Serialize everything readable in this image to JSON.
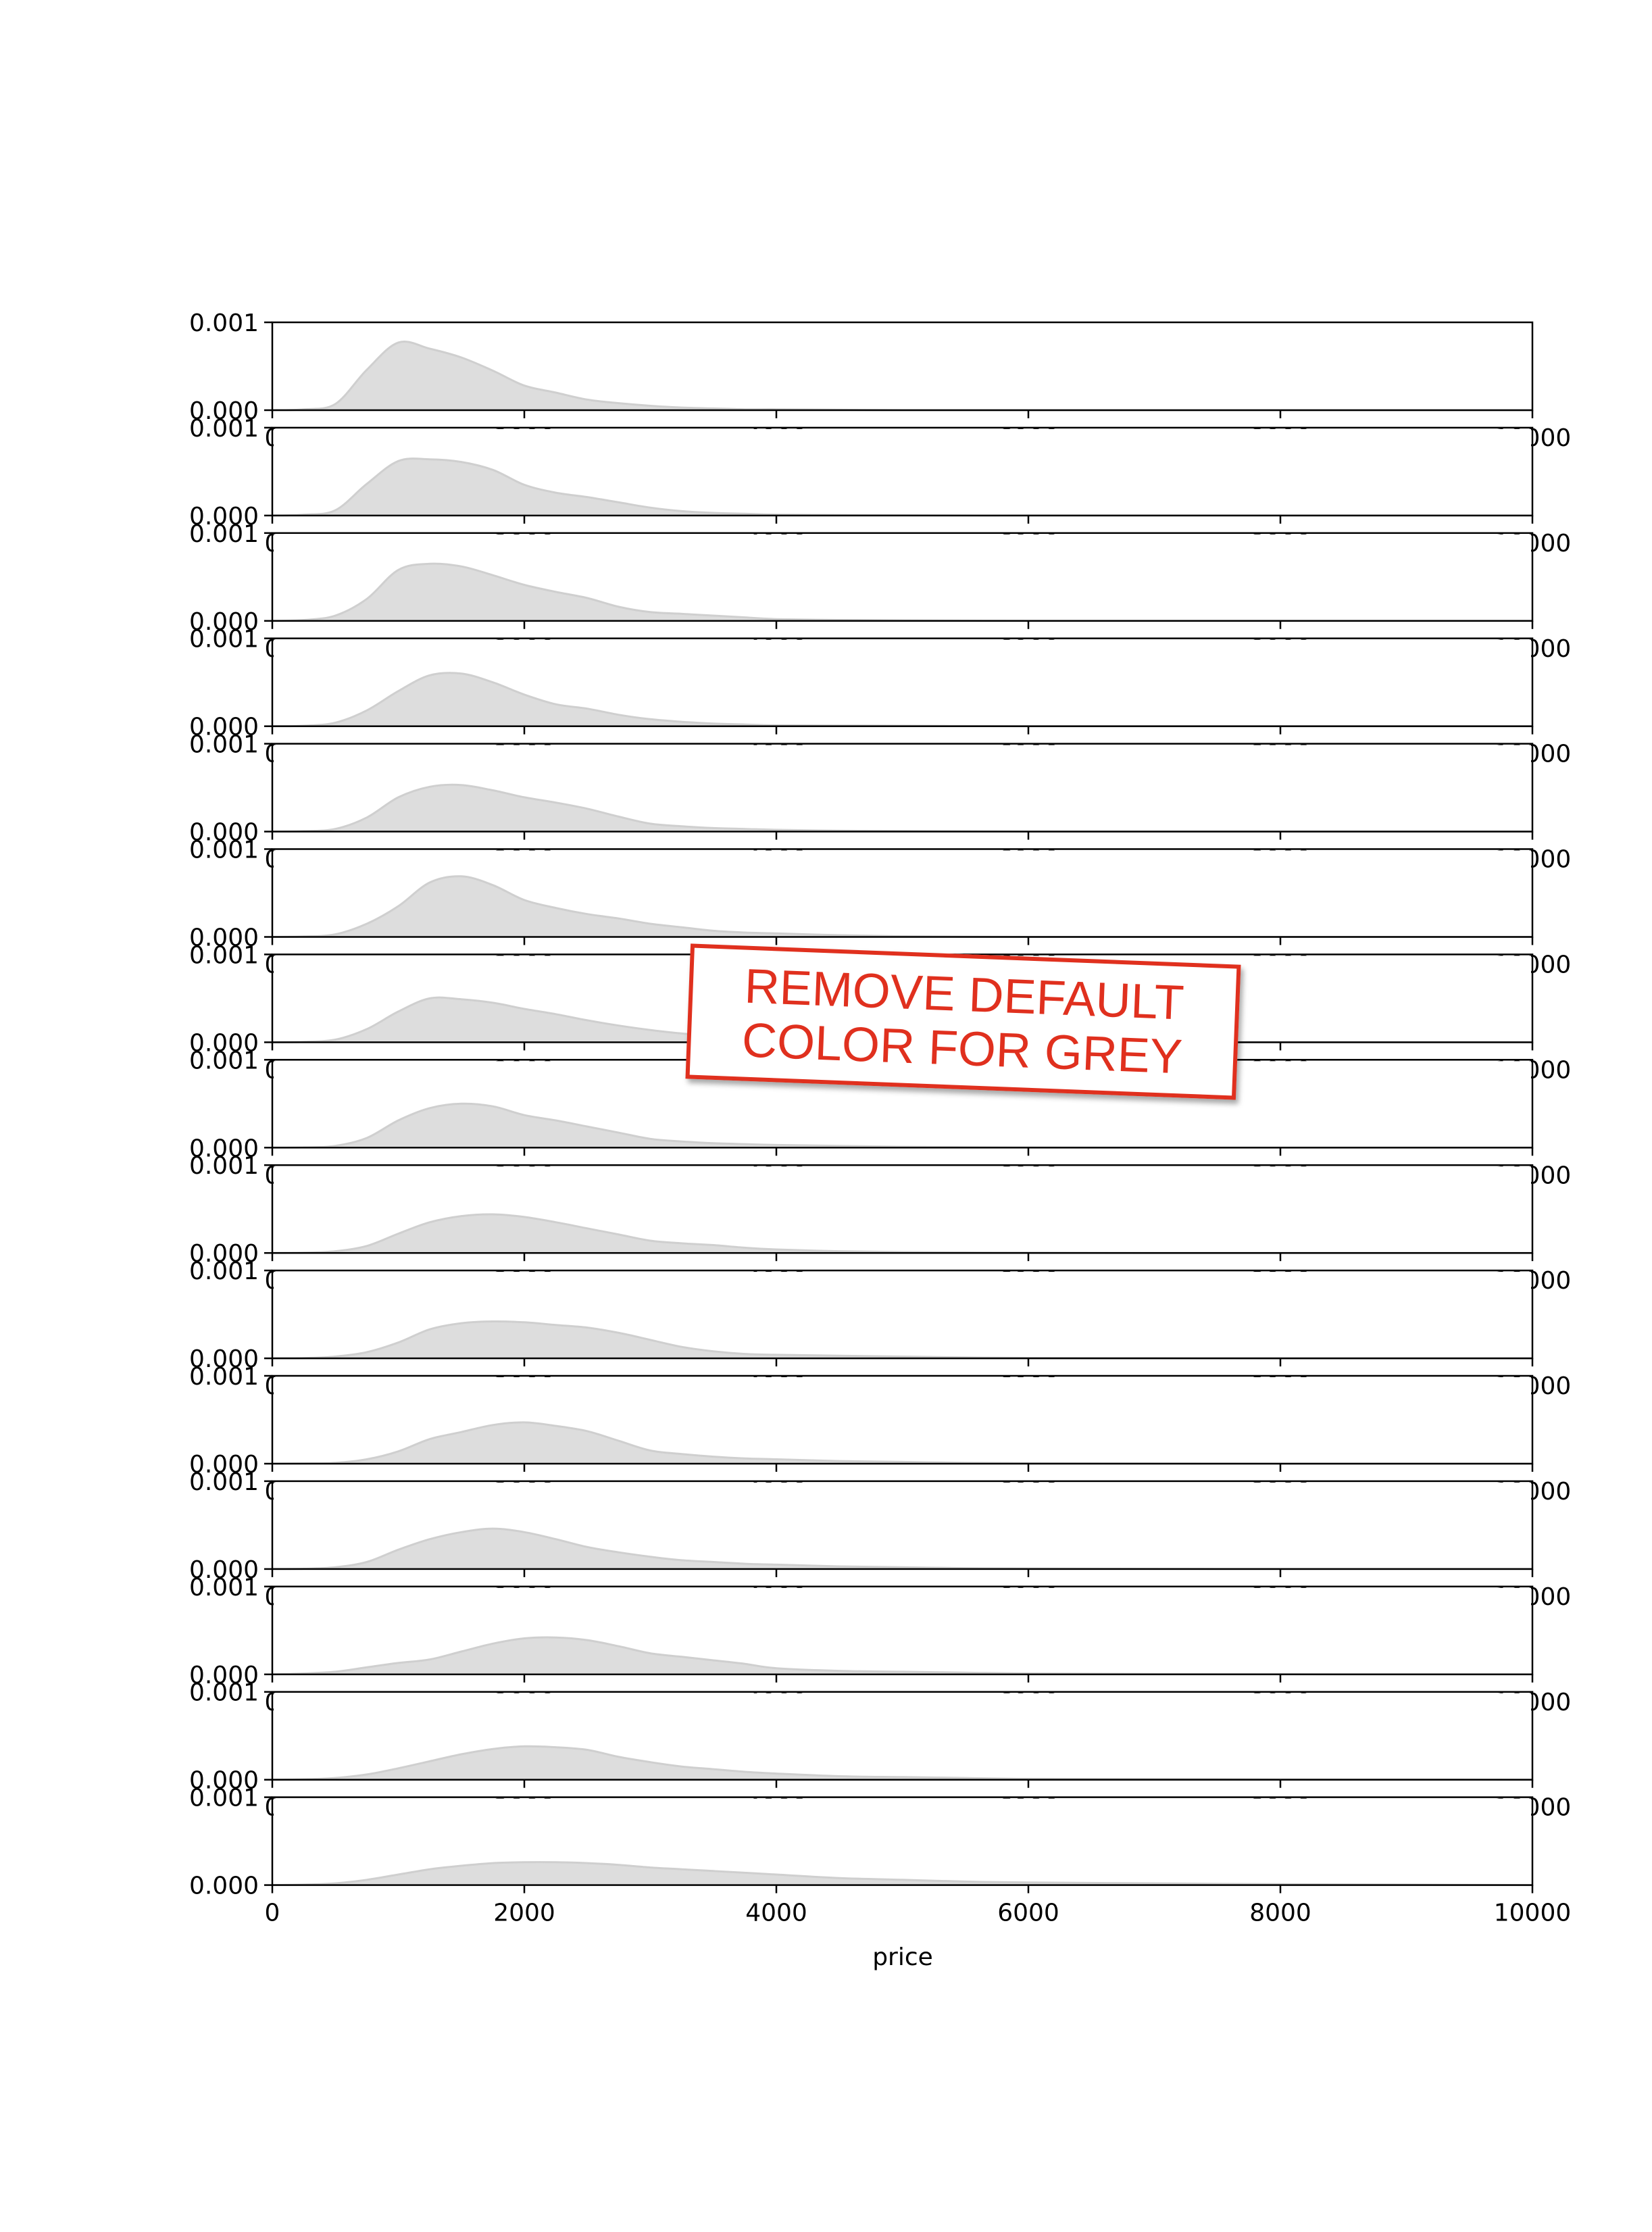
{
  "annotation": {
    "line1": "REMOVE DEFAULT",
    "line2": "COLOR FOR GREY",
    "color": "#e0301e"
  },
  "colors": {
    "fill": "#dddddd",
    "edge": "#cfcfcf",
    "axis": "#000000"
  },
  "chart_data": {
    "type": "area",
    "layout": "stacked small multiples (ridgeline-style), 15 panels sharing x axis",
    "xlabel": "price",
    "xlim": [
      0,
      10000
    ],
    "ylim": [
      0,
      0.001
    ],
    "x_ticks": [
      0,
      2000,
      4000,
      6000,
      8000,
      10000
    ],
    "x_tick_labels": [
      "0",
      "2000",
      "4000",
      "6000",
      "8000",
      "10000"
    ],
    "y_ticks": [
      0,
      0.001
    ],
    "y_tick_labels": [
      "0.000",
      "0.001"
    ],
    "x": [
      0,
      250,
      500,
      750,
      1000,
      1250,
      1500,
      1750,
      2000,
      2250,
      2500,
      2750,
      3000,
      3250,
      3500,
      3750,
      4000,
      4500,
      5000,
      5500,
      6000,
      7000,
      8000,
      9000,
      10000
    ],
    "series": [
      {
        "values": [
          0,
          1e-05,
          7e-05,
          0.00046,
          0.00077,
          0.0007,
          0.0006,
          0.00045,
          0.00028,
          0.0002,
          0.00012,
          8e-05,
          5e-05,
          3e-05,
          2e-05,
          1e-05,
          1e-05,
          5e-06,
          0,
          0,
          0,
          0,
          0,
          0,
          0
        ]
      },
      {
        "values": [
          0,
          1e-05,
          6e-05,
          0.00036,
          0.00062,
          0.00064,
          0.00061,
          0.00052,
          0.00035,
          0.00026,
          0.00021,
          0.00015,
          9e-05,
          5e-05,
          3e-05,
          2e-05,
          1e-05,
          6e-06,
          3e-06,
          0,
          0,
          0,
          0,
          0,
          0
        ]
      },
      {
        "values": [
          0,
          1e-05,
          6e-05,
          0.00025,
          0.00058,
          0.00065,
          0.00062,
          0.00052,
          0.00041,
          0.00033,
          0.00026,
          0.00016,
          0.0001,
          8e-05,
          6e-05,
          4e-05,
          2e-05,
          1e-05,
          5e-06,
          2e-06,
          0,
          0,
          0,
          0,
          0
        ]
      },
      {
        "values": [
          0,
          5e-06,
          4e-05,
          0.00018,
          0.0004,
          0.00058,
          0.0006,
          0.0005,
          0.00036,
          0.00025,
          0.0002,
          0.00013,
          8e-05,
          5e-05,
          3e-05,
          2e-05,
          1e-05,
          8e-06,
          5e-06,
          2e-06,
          0,
          0,
          0,
          0,
          0
        ]
      },
      {
        "values": [
          0,
          5e-06,
          3e-05,
          0.00016,
          0.00039,
          0.00051,
          0.00053,
          0.00047,
          0.00039,
          0.00033,
          0.00026,
          0.00017,
          9e-05,
          6e-05,
          4e-05,
          3e-05,
          2e-05,
          1e-05,
          6e-06,
          3e-06,
          0,
          0,
          0,
          0,
          0
        ]
      },
      {
        "values": [
          0,
          5e-06,
          3e-05,
          0.00015,
          0.00035,
          0.00062,
          0.00069,
          0.00059,
          0.00042,
          0.00033,
          0.00026,
          0.00021,
          0.00015,
          0.00011,
          7e-05,
          5e-05,
          4e-05,
          2e-05,
          8e-06,
          3e-06,
          0,
          0,
          0,
          0,
          0
        ]
      },
      {
        "values": [
          0,
          5e-06,
          3e-05,
          0.00015,
          0.00035,
          0.0005,
          0.00049,
          0.00045,
          0.00038,
          0.00032,
          0.00025,
          0.00019,
          0.00014,
          0.0001,
          7e-05,
          5e-05,
          3e-05,
          2e-05,
          1e-05,
          5e-06,
          0,
          0,
          0,
          0,
          0
        ]
      },
      {
        "values": [
          0,
          3e-06,
          2e-05,
          0.00011,
          0.00031,
          0.00045,
          0.0005,
          0.00047,
          0.00037,
          0.00031,
          0.00024,
          0.00017,
          0.0001,
          7e-05,
          5e-05,
          4e-05,
          3e-05,
          2e-05,
          1e-05,
          5e-06,
          2e-06,
          0,
          0,
          0,
          0
        ]
      },
      {
        "values": [
          0,
          3e-06,
          2e-05,
          8e-05,
          0.00022,
          0.00035,
          0.00042,
          0.00044,
          0.00041,
          0.00035,
          0.00028,
          0.00021,
          0.00014,
          0.00011,
          9e-05,
          6e-05,
          4e-05,
          2e-05,
          1e-05,
          6e-06,
          3e-06,
          0,
          0,
          0,
          0
        ]
      },
      {
        "values": [
          0,
          3e-06,
          2e-05,
          7e-05,
          0.00018,
          0.00033,
          0.0004,
          0.00042,
          0.00041,
          0.00038,
          0.00035,
          0.00029,
          0.00021,
          0.00013,
          8e-05,
          5e-05,
          4e-05,
          3e-05,
          2e-05,
          1e-05,
          5e-06,
          2e-06,
          0,
          0,
          0
        ]
      },
      {
        "values": [
          0,
          3e-06,
          1e-05,
          5e-05,
          0.00014,
          0.00028,
          0.00036,
          0.00044,
          0.00047,
          0.00043,
          0.00037,
          0.00026,
          0.00015,
          0.00011,
          8e-05,
          6e-05,
          5e-05,
          3e-05,
          2e-05,
          1e-05,
          6e-06,
          2e-06,
          0,
          0,
          0
        ]
      },
      {
        "values": [
          0,
          3e-06,
          2e-05,
          8e-05,
          0.00022,
          0.00034,
          0.00042,
          0.00046,
          0.00042,
          0.00034,
          0.00025,
          0.00019,
          0.00014,
          0.0001,
          8e-05,
          6e-05,
          5e-05,
          3e-05,
          2e-05,
          1e-05,
          6e-06,
          2e-06,
          0,
          0,
          0
        ]
      },
      {
        "values": [
          0,
          1e-05,
          3e-05,
          8e-05,
          0.00013,
          0.00017,
          0.00026,
          0.00035,
          0.00041,
          0.00042,
          0.00039,
          0.00032,
          0.00024,
          0.0002,
          0.00016,
          0.00012,
          7e-05,
          4e-05,
          3e-05,
          2e-05,
          1e-05,
          5e-06,
          2e-06,
          0,
          0
        ]
      },
      {
        "values": [
          0,
          5e-06,
          2e-05,
          6e-05,
          0.00013,
          0.00021,
          0.00029,
          0.00035,
          0.00038,
          0.00037,
          0.00034,
          0.00026,
          0.0002,
          0.00015,
          0.00012,
          9e-05,
          7e-05,
          4e-05,
          3e-05,
          2e-05,
          1e-05,
          8e-06,
          4e-06,
          2e-06,
          0
        ]
      },
      {
        "values": [
          0,
          5e-06,
          2e-05,
          6e-05,
          0.00012,
          0.00018,
          0.00022,
          0.00025,
          0.00026,
          0.00026,
          0.00025,
          0.00023,
          0.0002,
          0.00018,
          0.00016,
          0.00014,
          0.00012,
          8e-05,
          6e-05,
          4e-05,
          3e-05,
          2e-05,
          1e-05,
          5e-06,
          0
        ]
      }
    ]
  }
}
